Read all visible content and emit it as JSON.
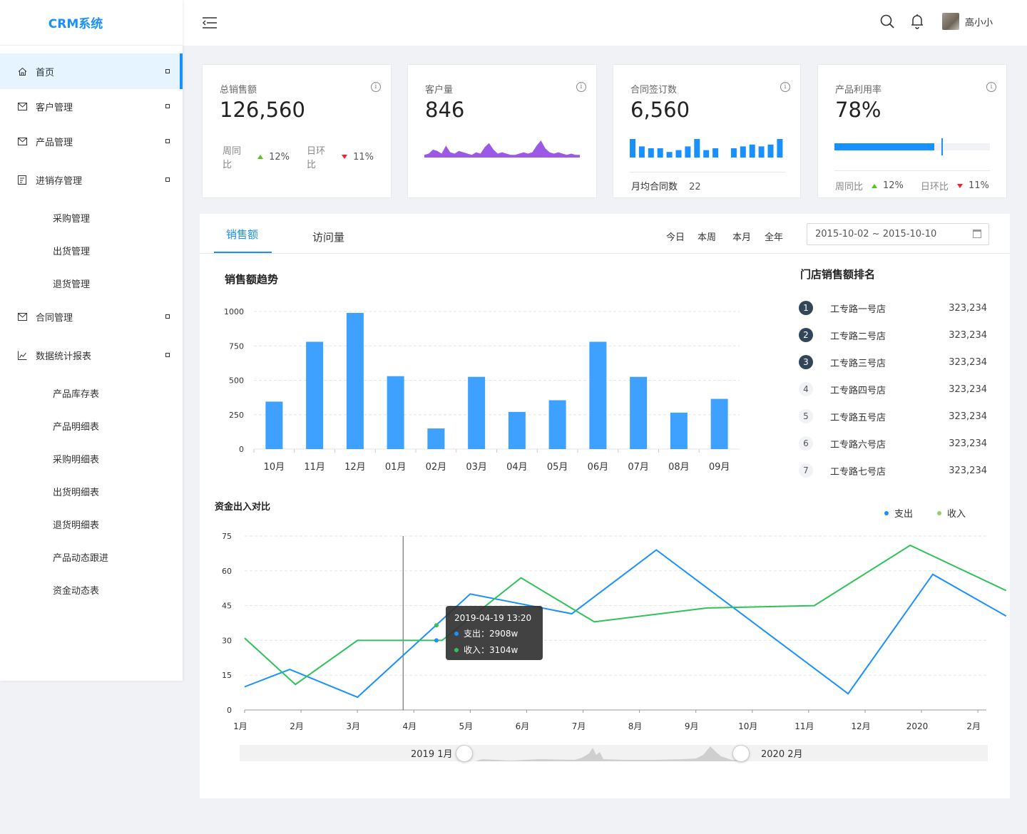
{
  "app": {
    "title": "CRM系统"
  },
  "sidebar": {
    "items": [
      {
        "label": "首页",
        "icon": "home-icon",
        "active": true
      },
      {
        "label": "客户管理",
        "icon": "mail-icon"
      },
      {
        "label": "产品管理",
        "icon": "mail-icon"
      },
      {
        "label": "进销存管理",
        "icon": "form-icon",
        "children": [
          "采购管理",
          "出货管理",
          "退货管理"
        ]
      },
      {
        "label": "合同管理",
        "icon": "mail-icon"
      },
      {
        "label": "数据统计报表",
        "icon": "line-chart-icon",
        "children": [
          "产品库存表",
          "产品明细表",
          "采购明细表",
          "出货明细表",
          "退货明细表",
          "产品动态跟进",
          "资金动态表"
        ]
      }
    ]
  },
  "header": {
    "user_name": "高小小"
  },
  "cards": {
    "sales": {
      "title": "总销售额",
      "value": "126,560",
      "wow_label": "周同比",
      "wow_value": "12%",
      "dod_label": "日环比",
      "dod_value": "11%"
    },
    "customers": {
      "title": "客户量",
      "value": "846",
      "spark": [
        2,
        3,
        6,
        5,
        3,
        9,
        4,
        3,
        5,
        4,
        3,
        2,
        4,
        3,
        8,
        11,
        6,
        3,
        4,
        3,
        2,
        2,
        3,
        4,
        3,
        4,
        9,
        13,
        7,
        4,
        3,
        4,
        3,
        2,
        3,
        2,
        2
      ]
    },
    "contracts": {
      "title": "合同签订数",
      "value": "6,560",
      "bars": [
        10,
        6,
        5,
        5,
        3,
        4,
        6,
        10,
        4,
        5,
        0,
        5,
        6,
        7,
        6,
        7,
        10
      ],
      "footer_label": "月均合同数",
      "footer_value": "22"
    },
    "utilization": {
      "title": "产品利用率",
      "value": "78%",
      "progress": 0.64,
      "target": 0.69,
      "wow_label": "周同比",
      "wow_value": "12%",
      "dod_label": "日环比",
      "dod_value": "11%"
    }
  },
  "tabs": [
    "销售额",
    "访问量"
  ],
  "ranges": [
    "今日",
    "本周",
    "本月",
    "全年"
  ],
  "date_range": "2015-10-02 ~ 2015-10-10",
  "sales_trend": {
    "title": "销售额趋势",
    "chart_data": {
      "type": "bar",
      "categories": [
        "10月",
        "11月",
        "12月",
        "01月",
        "02月",
        "03月",
        "04月",
        "05月",
        "06月",
        "07月",
        "08月",
        "09月"
      ],
      "values": [
        345,
        780,
        990,
        530,
        150,
        525,
        270,
        355,
        780,
        525,
        265,
        365
      ],
      "ylim": [
        0,
        1000
      ],
      "yticks": [
        "0",
        "250",
        "500",
        "750",
        "1000"
      ],
      "color": "#3ea0ff"
    }
  },
  "ranking": {
    "title": "门店销售额排名",
    "items": [
      {
        "rank": "1",
        "name": "工专路一号店",
        "value": "323,234"
      },
      {
        "rank": "2",
        "name": "工专路二号店",
        "value": "323,234"
      },
      {
        "rank": "3",
        "name": "工专路三号店",
        "value": "323,234"
      },
      {
        "rank": "4",
        "name": "工专路四号店",
        "value": "323,234"
      },
      {
        "rank": "5",
        "name": "工专路五号店",
        "value": "323,234"
      },
      {
        "rank": "6",
        "name": "工专路六号店",
        "value": "323,234"
      },
      {
        "rank": "7",
        "name": "工专路七号店",
        "value": "323,234"
      }
    ]
  },
  "funds": {
    "title": "资金出入对比",
    "chart_data": {
      "type": "line",
      "ylim": [
        0,
        75
      ],
      "yticks": [
        "0",
        "15",
        "30",
        "45",
        "60",
        "75"
      ],
      "xticks": [
        "1月",
        "2月",
        "3月",
        "4月",
        "5月",
        "6月",
        "7月",
        "8月",
        "9月",
        "10月",
        "11月",
        "12月",
        "2020",
        "2月"
      ],
      "series": [
        {
          "name": "支出",
          "color": "#1890ff",
          "points": [
            [
              0,
              10
            ],
            [
              0.8,
              17.5
            ],
            [
              2,
              5.5
            ],
            [
              4,
              50
            ],
            [
              5.8,
              41.5
            ],
            [
              7.3,
              69
            ],
            [
              10.7,
              7
            ],
            [
              12.2,
              58.5
            ],
            [
              13.5,
              40.5
            ]
          ]
        },
        {
          "name": "收入",
          "color": "#2fc25b",
          "points": [
            [
              0,
              31
            ],
            [
              0.9,
              11
            ],
            [
              2,
              30
            ],
            [
              3.5,
              30
            ],
            [
              4.9,
              57
            ],
            [
              6.2,
              38
            ],
            [
              8.2,
              44
            ],
            [
              10.1,
              45
            ],
            [
              11.8,
              71
            ],
            [
              13.5,
              51.5
            ]
          ]
        }
      ]
    },
    "tooltip": {
      "date": "2019-04-19  13:20",
      "expense_label": "支出：2908w",
      "income_label": "收入：3104w"
    },
    "slider": {
      "start_label": "2019 1月",
      "end_label": "2020 2月",
      "start": 0.3,
      "end": 0.67
    }
  },
  "colors": {
    "accent": "#1890ff",
    "purple": "#9b59e6",
    "up": "#52c41a",
    "down": "#f5222d"
  }
}
